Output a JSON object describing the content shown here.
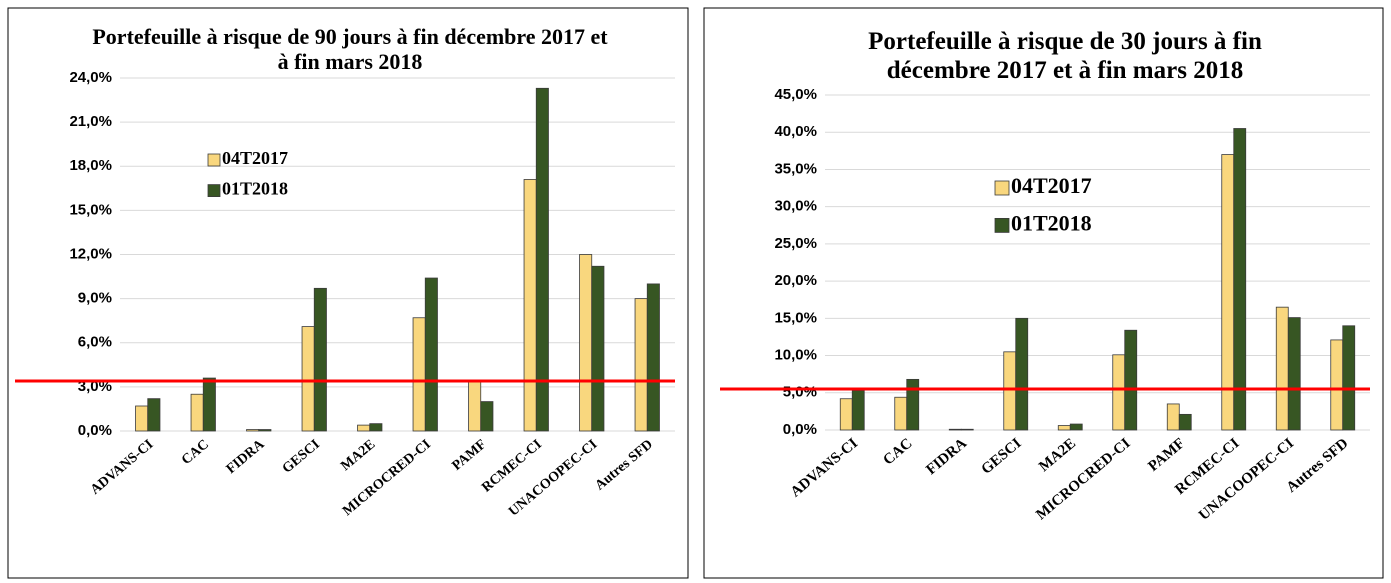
{
  "chart_data": [
    {
      "type": "bar",
      "title": "Portefeuille à risque de 90 jours à fin décembre 2017 et à fin mars 2018",
      "categories": [
        "ADVANS-CI",
        "CAC",
        "FIDRA",
        "GESCI",
        "MA2E",
        "MICROCRED-CI",
        "PAMF",
        "RCMEC-CI",
        "UNACOOPEC-CI",
        "Autres SFD"
      ],
      "series": [
        {
          "name": "04T2017",
          "color": "#f9d77e",
          "values": [
            1.7,
            2.5,
            0.1,
            7.1,
            0.4,
            7.7,
            3.4,
            17.1,
            12.0,
            9.0
          ]
        },
        {
          "name": "01T2018",
          "color": "#375623",
          "values": [
            2.2,
            3.6,
            0.1,
            9.7,
            0.5,
            10.4,
            2.0,
            23.3,
            11.2,
            10.0
          ]
        }
      ],
      "ylim": [
        0,
        24
      ],
      "yticks": [
        {
          "value": 0,
          "label": "0,0%"
        },
        {
          "value": 3,
          "label": "3,0%"
        },
        {
          "value": 6,
          "label": "6,0%"
        },
        {
          "value": 9,
          "label": "9,0%"
        },
        {
          "value": 12,
          "label": "12,0%"
        },
        {
          "value": 15,
          "label": "15,0%"
        },
        {
          "value": 18,
          "label": "18,0%"
        },
        {
          "value": 21,
          "label": "21,0%"
        },
        {
          "value": 24,
          "label": "24,0%"
        }
      ],
      "grid": true,
      "reference_line": {
        "value": 3.4,
        "color": "#ff0000"
      }
    },
    {
      "type": "bar",
      "title": "Portefeuille à risque de 30 jours à fin décembre 2017 et à fin mars 2018",
      "categories": [
        "ADVANS-CI",
        "CAC",
        "FIDRA",
        "GESCI",
        "MA2E",
        "MICROCRED-CI",
        "PAMF",
        "RCMEC-CI",
        "UNACOOPEC-CI",
        "Autres SFD"
      ],
      "series": [
        {
          "name": "04T2017",
          "color": "#f9d77e",
          "values": [
            4.2,
            4.4,
            0.1,
            10.5,
            0.6,
            10.1,
            3.5,
            37.0,
            16.5,
            12.1
          ]
        },
        {
          "name": "01T2018",
          "color": "#375623",
          "values": [
            5.3,
            6.8,
            0.1,
            15.0,
            0.8,
            13.4,
            2.1,
            40.5,
            15.1,
            14.0
          ]
        }
      ],
      "ylim": [
        0,
        45
      ],
      "yticks": [
        {
          "value": 0,
          "label": "0,0%"
        },
        {
          "value": 5,
          "label": "5,0%"
        },
        {
          "value": 10,
          "label": "10,0%"
        },
        {
          "value": 15,
          "label": "15,0%"
        },
        {
          "value": 20,
          "label": "20,0%"
        },
        {
          "value": 25,
          "label": "25,0%"
        },
        {
          "value": 30,
          "label": "30,0%"
        },
        {
          "value": 35,
          "label": "35,0%"
        },
        {
          "value": 40,
          "label": "40,0%"
        },
        {
          "value": 45,
          "label": "45,0%"
        }
      ],
      "grid": true,
      "reference_line": {
        "value": 5.5,
        "color": "#ff0000"
      }
    }
  ]
}
